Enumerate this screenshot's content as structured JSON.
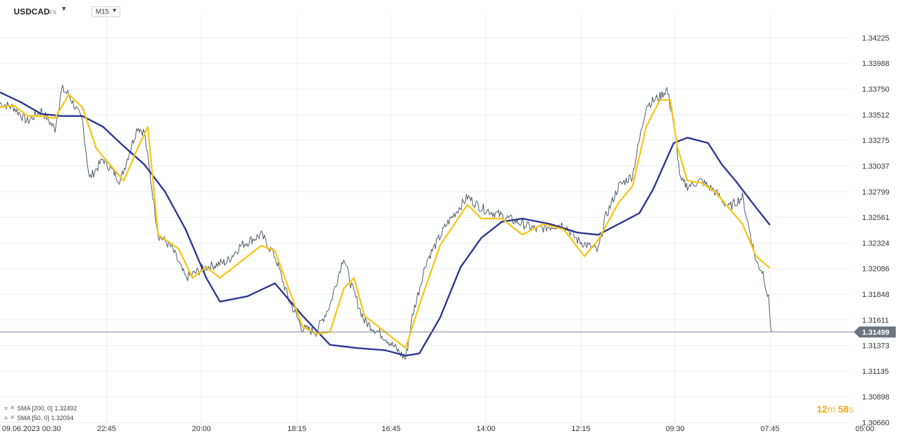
{
  "header": {
    "symbol": "USDCAD",
    "market": "FX",
    "timeframe": "M15"
  },
  "legend": [
    {
      "params": "SMA [200,  0]",
      "value": "1.32492",
      "color": "#2c3594"
    },
    {
      "params": "SMA [50,  0]",
      "value": "1.32094",
      "color": "#f5c81f"
    }
  ],
  "countdown": {
    "minutes": "12",
    "minutes_unit": "m",
    "seconds": "58",
    "seconds_unit": "s"
  },
  "chart_data": {
    "type": "line",
    "y_tick_labels": [
      "1.34225",
      "1.33988",
      "1.33750",
      "1.33512",
      "1.33275",
      "1.33037",
      "1.32799",
      "1.32561",
      "1.32324",
      "1.32086",
      "1.31848",
      "1.31611",
      "1.31373",
      "1.31135",
      "1.30898",
      "1.30660"
    ],
    "x_tick_labels": [
      "09.06.2023  00:30",
      "22:45",
      "20:00",
      "18:15",
      "16:45",
      "14:00",
      "12:15",
      "09:30",
      "07:45",
      "05:00"
    ],
    "ylim": [
      1.3066,
      1.3446
    ],
    "current_price": 1.31499,
    "current_price_label": "1.31499",
    "grid": true,
    "x": [
      0,
      20,
      40,
      60,
      80,
      90,
      100,
      120,
      130,
      150,
      175,
      200,
      210,
      230,
      250,
      270,
      300,
      330,
      350,
      380,
      400,
      420,
      440,
      460,
      480,
      500,
      510,
      530,
      560,
      590,
      600,
      620,
      650,
      680,
      700,
      740,
      780,
      820,
      840,
      870,
      880,
      900,
      920,
      940,
      960,
      970,
      980,
      990,
      1000,
      1020,
      1040,
      1060,
      1080,
      1100,
      1110,
      1118,
      1122
    ],
    "price": [
      1.3362,
      1.3358,
      1.3345,
      1.3355,
      1.3338,
      1.3375,
      1.337,
      1.3345,
      1.3292,
      1.331,
      1.329,
      1.334,
      1.3335,
      1.324,
      1.3228,
      1.32,
      1.321,
      1.3215,
      1.323,
      1.324,
      1.322,
      1.318,
      1.3153,
      1.315,
      1.3175,
      1.322,
      1.3195,
      1.316,
      1.3145,
      1.3125,
      1.3165,
      1.3215,
      1.325,
      1.3275,
      1.3265,
      1.3255,
      1.3245,
      1.325,
      1.3235,
      1.3225,
      1.3255,
      1.3285,
      1.3295,
      1.336,
      1.3368,
      1.3375,
      1.3345,
      1.329,
      1.3285,
      1.329,
      1.328,
      1.3265,
      1.3275,
      1.3215,
      1.3205,
      1.318,
      1.315
    ],
    "series": [
      {
        "name": "SMA [200,  0]",
        "color": "#2c3594",
        "x": [
          0,
          30,
          60,
          90,
          120,
          150,
          180,
          210,
          240,
          270,
          300,
          320,
          360,
          400,
          440,
          480,
          520,
          560,
          590,
          610,
          640,
          670,
          700,
          730,
          760,
          800,
          840,
          870,
          900,
          930,
          950,
          980,
          1000,
          1030,
          1050,
          1070,
          1100,
          1120
        ],
        "values": [
          1.3372,
          1.3363,
          1.3352,
          1.335,
          1.335,
          1.334,
          1.3322,
          1.3305,
          1.328,
          1.3245,
          1.32,
          1.3178,
          1.3183,
          1.3195,
          1.3165,
          1.3138,
          1.3135,
          1.3133,
          1.3128,
          1.313,
          1.3163,
          1.321,
          1.3237,
          1.3252,
          1.3255,
          1.325,
          1.3242,
          1.324,
          1.325,
          1.326,
          1.3282,
          1.3325,
          1.333,
          1.3325,
          1.3305,
          1.329,
          1.3265,
          1.3249
        ]
      },
      {
        "name": "SMA [50,  0]",
        "color": "#f5c81f",
        "x": [
          0,
          20,
          40,
          60,
          80,
          100,
          120,
          140,
          160,
          180,
          200,
          215,
          230,
          260,
          280,
          300,
          320,
          350,
          380,
          400,
          420,
          440,
          460,
          480,
          500,
          515,
          530,
          560,
          590,
          610,
          640,
          680,
          700,
          730,
          760,
          790,
          820,
          850,
          870,
          900,
          920,
          940,
          960,
          975,
          985,
          1000,
          1020,
          1040,
          1060,
          1080,
          1100,
          1120
        ],
        "values": [
          1.3358,
          1.336,
          1.335,
          1.335,
          1.3348,
          1.337,
          1.3358,
          1.332,
          1.3305,
          1.329,
          1.332,
          1.334,
          1.324,
          1.3227,
          1.32,
          1.321,
          1.32,
          1.3215,
          1.323,
          1.3225,
          1.319,
          1.3155,
          1.3148,
          1.315,
          1.319,
          1.32,
          1.3165,
          1.315,
          1.3135,
          1.3175,
          1.323,
          1.3268,
          1.3255,
          1.3255,
          1.324,
          1.325,
          1.3245,
          1.322,
          1.3235,
          1.327,
          1.3285,
          1.334,
          1.3365,
          1.3365,
          1.3322,
          1.329,
          1.3288,
          1.328,
          1.3265,
          1.325,
          1.322,
          1.3209
        ]
      }
    ]
  }
}
